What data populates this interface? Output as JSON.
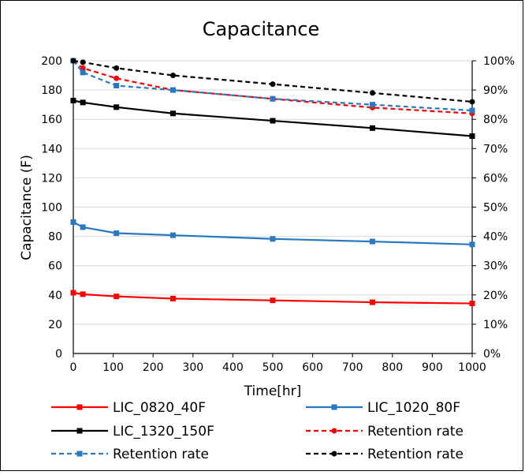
{
  "chart_data": {
    "type": "line",
    "title": "Capacitance",
    "xlabel": "Time[hr]",
    "ylabel": "Capacitance (F)",
    "x": [
      0,
      24,
      108,
      250,
      500,
      750,
      1000
    ],
    "xlim": [
      0,
      1000
    ],
    "xticks": [
      "0",
      "100",
      "200",
      "300",
      "400",
      "500",
      "600",
      "700",
      "800",
      "900",
      "1000"
    ],
    "ylim": [
      0,
      200
    ],
    "yticks": [
      "0",
      "20",
      "40",
      "60",
      "80",
      "100",
      "120",
      "140",
      "160",
      "180",
      "200"
    ],
    "y2lim": [
      0,
      100
    ],
    "y2ticks": [
      "0%",
      "10%",
      "20%",
      "30%",
      "40%",
      "50%",
      "60%",
      "70%",
      "80%",
      "90%",
      "100%"
    ],
    "grid": "horizontal",
    "legend_position": "bottom",
    "series": [
      {
        "name": "LIC_0820_40F",
        "axis": "left",
        "color": "#ff0000",
        "dash": "solid",
        "marker": "square",
        "values": [
          41.5,
          40.5,
          39,
          37.5,
          36.3,
          35,
          34.2
        ]
      },
      {
        "name": "LIC_1020_80F",
        "axis": "left",
        "color": "#2a78c2",
        "dash": "solid",
        "marker": "square",
        "values": [
          89.8,
          86.3,
          82.2,
          80.8,
          78.3,
          76.5,
          74.5
        ]
      },
      {
        "name": "LIC_1320_150F",
        "axis": "left",
        "color": "#000000",
        "dash": "solid",
        "marker": "square",
        "values": [
          172.8,
          171.5,
          168.3,
          164,
          159,
          154,
          148.5
        ]
      },
      {
        "name": "Retention rate",
        "axis": "right",
        "color": "#ff0000",
        "dash": "dashed",
        "marker": "circle",
        "values": [
          100,
          97.5,
          94,
          90,
          87,
          84,
          82
        ]
      },
      {
        "name": "Retention rate",
        "axis": "right",
        "color": "#2a78c2",
        "dash": "dashed",
        "marker": "square",
        "values": [
          100,
          96,
          91.5,
          90,
          87,
          85,
          83
        ]
      },
      {
        "name": "Retention rate",
        "axis": "right",
        "color": "#000000",
        "dash": "dashed",
        "marker": "circle",
        "values": [
          100,
          99.5,
          97.5,
          95,
          92,
          89,
          86
        ]
      }
    ]
  }
}
